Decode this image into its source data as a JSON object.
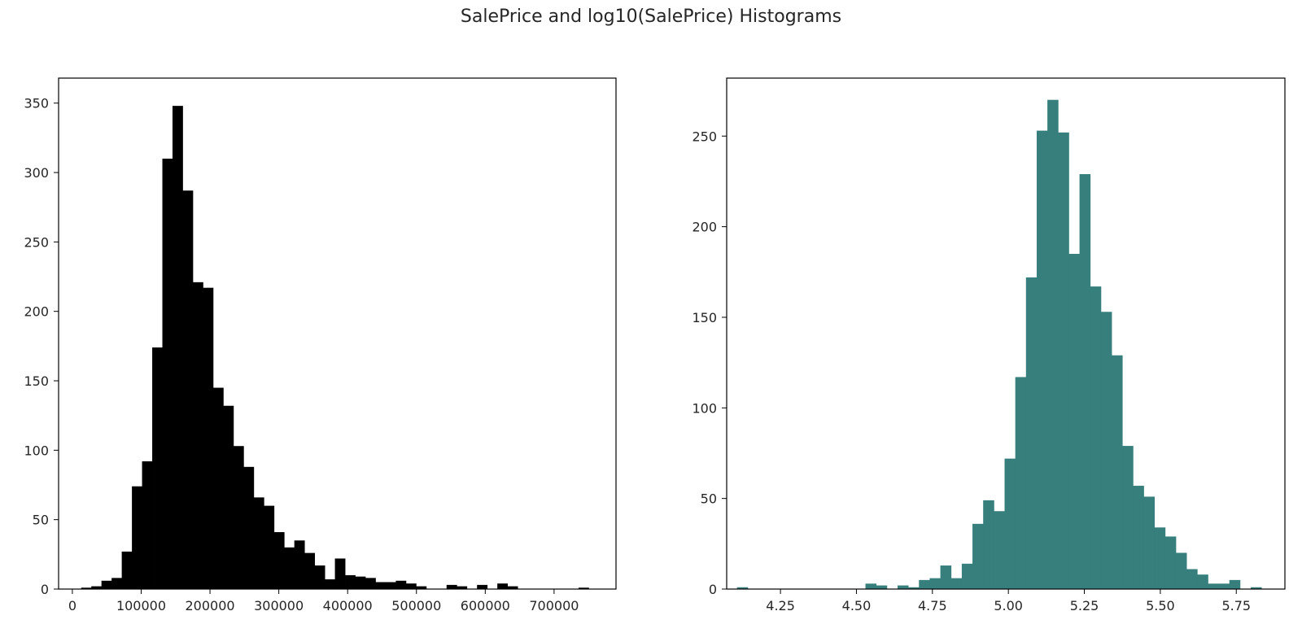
{
  "figure": {
    "suptitle": "SalePrice and log10(SalePrice) Histograms"
  },
  "chart_data": [
    {
      "type": "bar",
      "subtype": "histogram",
      "title": "",
      "xlabel": "",
      "ylabel": "",
      "color": "#000000",
      "xlim": [
        -20000,
        790000
      ],
      "ylim": [
        0,
        368
      ],
      "xticks": [
        0,
        100000,
        200000,
        300000,
        400000,
        500000,
        600000,
        700000
      ],
      "xtick_labels": [
        "0",
        "100000",
        "200000",
        "300000",
        "400000",
        "500000",
        "600000",
        "700000"
      ],
      "yticks": [
        0,
        50,
        100,
        150,
        200,
        250,
        300,
        350
      ],
      "ytick_labels": [
        "0",
        "50",
        "100",
        "150",
        "200",
        "250",
        "300",
        "350"
      ],
      "bin_start": 12789,
      "bin_width": 14750,
      "counts": [
        1,
        2,
        6,
        8,
        27,
        74,
        92,
        174,
        310,
        348,
        287,
        221,
        217,
        145,
        132,
        103,
        88,
        66,
        60,
        41,
        30,
        35,
        26,
        17,
        7,
        22,
        10,
        9,
        8,
        5,
        5,
        6,
        4,
        2,
        0,
        0,
        3,
        2,
        0,
        3,
        0,
        4,
        2,
        0,
        0,
        0,
        0,
        0,
        0,
        1
      ],
      "grid": false,
      "legend": "none"
    },
    {
      "type": "bar",
      "subtype": "histogram",
      "title": "",
      "xlabel": "",
      "ylabel": "",
      "color": "#367f7c",
      "xlim": [
        4.073,
        5.91
      ],
      "ylim": [
        0,
        282
      ],
      "xticks": [
        4.25,
        4.5,
        4.75,
        5.0,
        5.25,
        5.5,
        5.75
      ],
      "xtick_labels": [
        "4.25",
        "4.50",
        "4.75",
        "5.00",
        "5.25",
        "5.50",
        "5.75"
      ],
      "yticks": [
        0,
        50,
        100,
        150,
        200,
        250
      ],
      "ytick_labels": [
        "0",
        "50",
        "100",
        "150",
        "200",
        "250"
      ],
      "bin_start": 4.107,
      "bin_width": 0.03522,
      "counts": [
        1,
        0,
        0,
        0,
        0,
        0,
        0,
        0,
        0,
        0,
        0,
        0,
        3,
        2,
        0,
        2,
        1,
        5,
        6,
        13,
        6,
        14,
        36,
        49,
        43,
        72,
        117,
        172,
        253,
        270,
        252,
        185,
        229,
        167,
        153,
        129,
        79,
        57,
        51,
        34,
        29,
        20,
        11,
        8,
        3,
        3,
        5,
        0,
        1
      ],
      "grid": false,
      "legend": "none"
    }
  ]
}
